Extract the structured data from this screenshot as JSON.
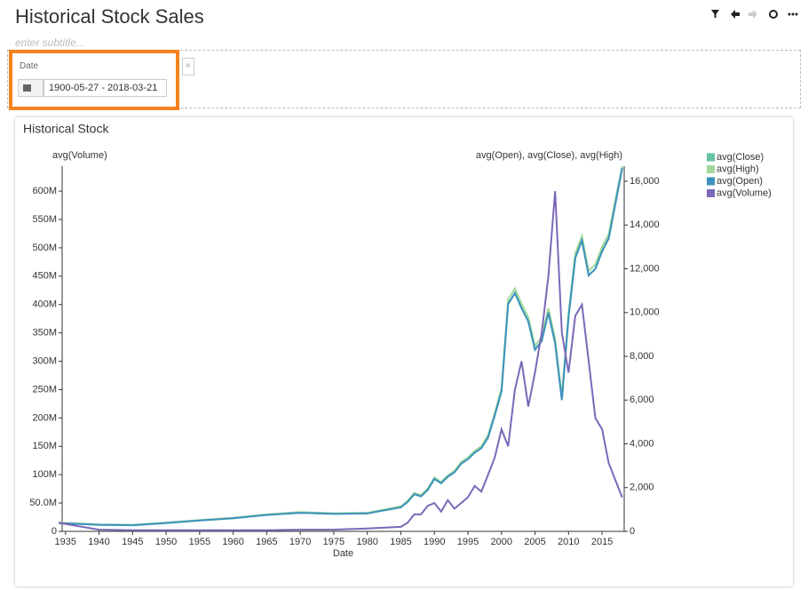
{
  "header": {
    "title": "Historical Stock Sales",
    "subtitle": "enter subtitle..."
  },
  "filter": {
    "label": "Date",
    "value": "1900-05-27 - 2018-03-21"
  },
  "chart_data": {
    "type": "line",
    "title": "Historical Stock",
    "x_label": "Date",
    "y_label": "avg(Volume)",
    "y2_label": "avg(Open), avg(Close), avg(High)",
    "legend": "top-right",
    "x": [
      1934,
      1940,
      1945,
      1950,
      1955,
      1960,
      1965,
      1970,
      1975,
      1980,
      1985,
      1986,
      1987,
      1988,
      1989,
      1990,
      1991,
      1992,
      1993,
      1994,
      1995,
      1996,
      1997,
      1998,
      1999,
      2000,
      2001,
      2002,
      2003,
      2004,
      2005,
      2006,
      2007,
      2008,
      2009,
      2010,
      2011,
      2012,
      2013,
      2014,
      2015,
      2016,
      2017,
      2018
    ],
    "xlim": [
      1934.5,
      2018.3
    ],
    "xticks": [
      1935,
      1940,
      1945,
      1950,
      1955,
      1960,
      1965,
      1970,
      1975,
      1980,
      1985,
      1990,
      1995,
      2000,
      2005,
      2010,
      2015
    ],
    "ylim": [
      0,
      644000000
    ],
    "yticks": [
      0,
      {
        "value": 50000000,
        "label": "50.0M"
      },
      {
        "value": 100000000,
        "label": "100M"
      },
      {
        "value": 150000000,
        "label": "150M"
      },
      {
        "value": 200000000,
        "label": "200M"
      },
      {
        "value": 250000000,
        "label": "250M"
      },
      {
        "value": 300000000,
        "label": "300M"
      },
      {
        "value": 350000000,
        "label": "350M"
      },
      {
        "value": 400000000,
        "label": "400M"
      },
      {
        "value": 450000000,
        "label": "450M"
      },
      {
        "value": 500000000,
        "label": "500M"
      },
      {
        "value": 550000000,
        "label": "550M"
      },
      {
        "value": 600000000,
        "label": "600M"
      }
    ],
    "y2lim": [
      0,
      16690
    ],
    "y2ticks": [
      0,
      {
        "value": 2000,
        "label": "2,000"
      },
      {
        "value": 4000,
        "label": "4,000"
      },
      {
        "value": 6000,
        "label": "6,000"
      },
      {
        "value": 8000,
        "label": "8,000"
      },
      {
        "value": 10000,
        "label": "10,000"
      },
      {
        "value": 12000,
        "label": "12,000"
      },
      {
        "value": 14000,
        "label": "14,000"
      },
      {
        "value": 16000,
        "label": "16,000"
      }
    ],
    "series": [
      {
        "name": "avg(Close)",
        "color": "#66c2a4",
        "axis": "y2",
        "values": [
          370,
          300,
          280,
          380,
          500,
          600,
          750,
          850,
          800,
          820,
          1100,
          1340,
          1690,
          1600,
          1890,
          2390,
          2200,
          2490,
          2700,
          3090,
          3300,
          3590,
          3800,
          4290,
          5290,
          6390,
          10380,
          10880,
          10200,
          9590,
          8300,
          8690,
          9990,
          8600,
          6000,
          9790,
          12490,
          13290,
          11700,
          11990,
          12790,
          13390,
          14990,
          16590
        ]
      },
      {
        "name": "avg(High)",
        "color": "#a1d99b",
        "axis": "y2",
        "values": [
          400,
          320,
          300,
          400,
          520,
          620,
          780,
          880,
          830,
          850,
          1140,
          1390,
          1760,
          1650,
          1950,
          2460,
          2260,
          2560,
          2770,
          3170,
          3380,
          3680,
          3890,
          4400,
          5420,
          6530,
          10600,
          11100,
          10400,
          9780,
          8480,
          8870,
          10200,
          8800,
          6200,
          9990,
          12700,
          13500,
          11900,
          12200,
          13000,
          13600,
          15200,
          16690
        ]
      },
      {
        "name": "avg(Open)",
        "color": "#3d93bd",
        "axis": "y2",
        "values": [
          380,
          300,
          280,
          380,
          500,
          600,
          750,
          850,
          800,
          820,
          1100,
          1350,
          1700,
          1600,
          1900,
          2400,
          2200,
          2500,
          2700,
          3100,
          3300,
          3600,
          3800,
          4300,
          5300,
          6400,
          10400,
          10900,
          10200,
          9600,
          8300,
          8700,
          10000,
          8600,
          6000,
          9800,
          12500,
          13300,
          11700,
          12000,
          12800,
          13400,
          15000,
          16600
        ]
      },
      {
        "name": "avg(Volume)",
        "color": "#7b68b8",
        "axis": "y",
        "values": [
          15000000,
          3000000,
          2000000,
          2000000,
          2000000,
          2000000,
          2000000,
          3000000,
          3000000,
          5000000,
          8000000,
          15000000,
          30000000,
          30000000,
          45000000,
          50000000,
          35000000,
          55000000,
          40000000,
          50000000,
          60000000,
          80000000,
          70000000,
          100000000,
          130000000,
          180000000,
          150000000,
          250000000,
          300000000,
          220000000,
          280000000,
          350000000,
          450000000,
          600000000,
          350000000,
          280000000,
          380000000,
          400000000,
          300000000,
          200000000,
          180000000,
          120000000,
          90000000,
          60000000
        ]
      }
    ]
  }
}
